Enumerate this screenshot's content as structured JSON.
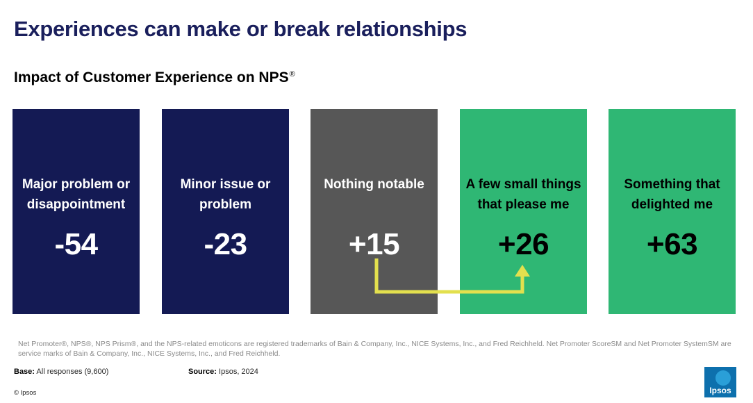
{
  "header": {
    "title": "Experiences can make or break relationships",
    "subtitle": "Impact of Customer Experience on NPS",
    "subtitle_mark": "®"
  },
  "colors": {
    "navy": "#141a54",
    "gray": "#575757",
    "green": "#2fb774",
    "arrow": "#e3e04e",
    "title": "#1a1f5c"
  },
  "chart_data": {
    "type": "table",
    "title": "Impact of Customer Experience on NPS®",
    "categories": [
      "Major problem or disappointment",
      "Minor issue or problem",
      "Nothing notable",
      "A few small things that please me",
      "Something that delighted me"
    ],
    "values": [
      -54,
      -23,
      15,
      26,
      63
    ],
    "cards": [
      {
        "label": "Major problem or disappointment",
        "value": "-54",
        "color": "#141a54",
        "text_color": "#ffffff"
      },
      {
        "label": "Minor issue or problem",
        "value": "-23",
        "color": "#141a54",
        "text_color": "#ffffff"
      },
      {
        "label": "Nothing notable",
        "value": "+15",
        "color": "#575757",
        "text_color": "#ffffff"
      },
      {
        "label": "A few small things that please me",
        "value": "+26",
        "color": "#2fb774",
        "text_color": "#000000"
      },
      {
        "label": "Something that delighted me",
        "value": "+63",
        "color": "#2fb774",
        "text_color": "#000000"
      }
    ],
    "annotation": "arrow from +15 to +26"
  },
  "footer": {
    "disclaimer": "Net Promoter®, NPS®, NPS Prism®, and the NPS-related emoticons are registered trademarks of Bain & Company, Inc., NICE Systems, Inc., and Fred Reichheld. Net Promoter ScoreSM and Net Promoter SystemSM are service marks of Bain & Company, Inc., NICE Systems, Inc., and Fred Reichheld.",
    "base_label": "Base:",
    "base_value": "All responses (9,600)",
    "source_label": "Source:",
    "source_value": "Ipsos, 2024",
    "copyright": "© Ipsos",
    "logo_text": "Ipsos"
  }
}
